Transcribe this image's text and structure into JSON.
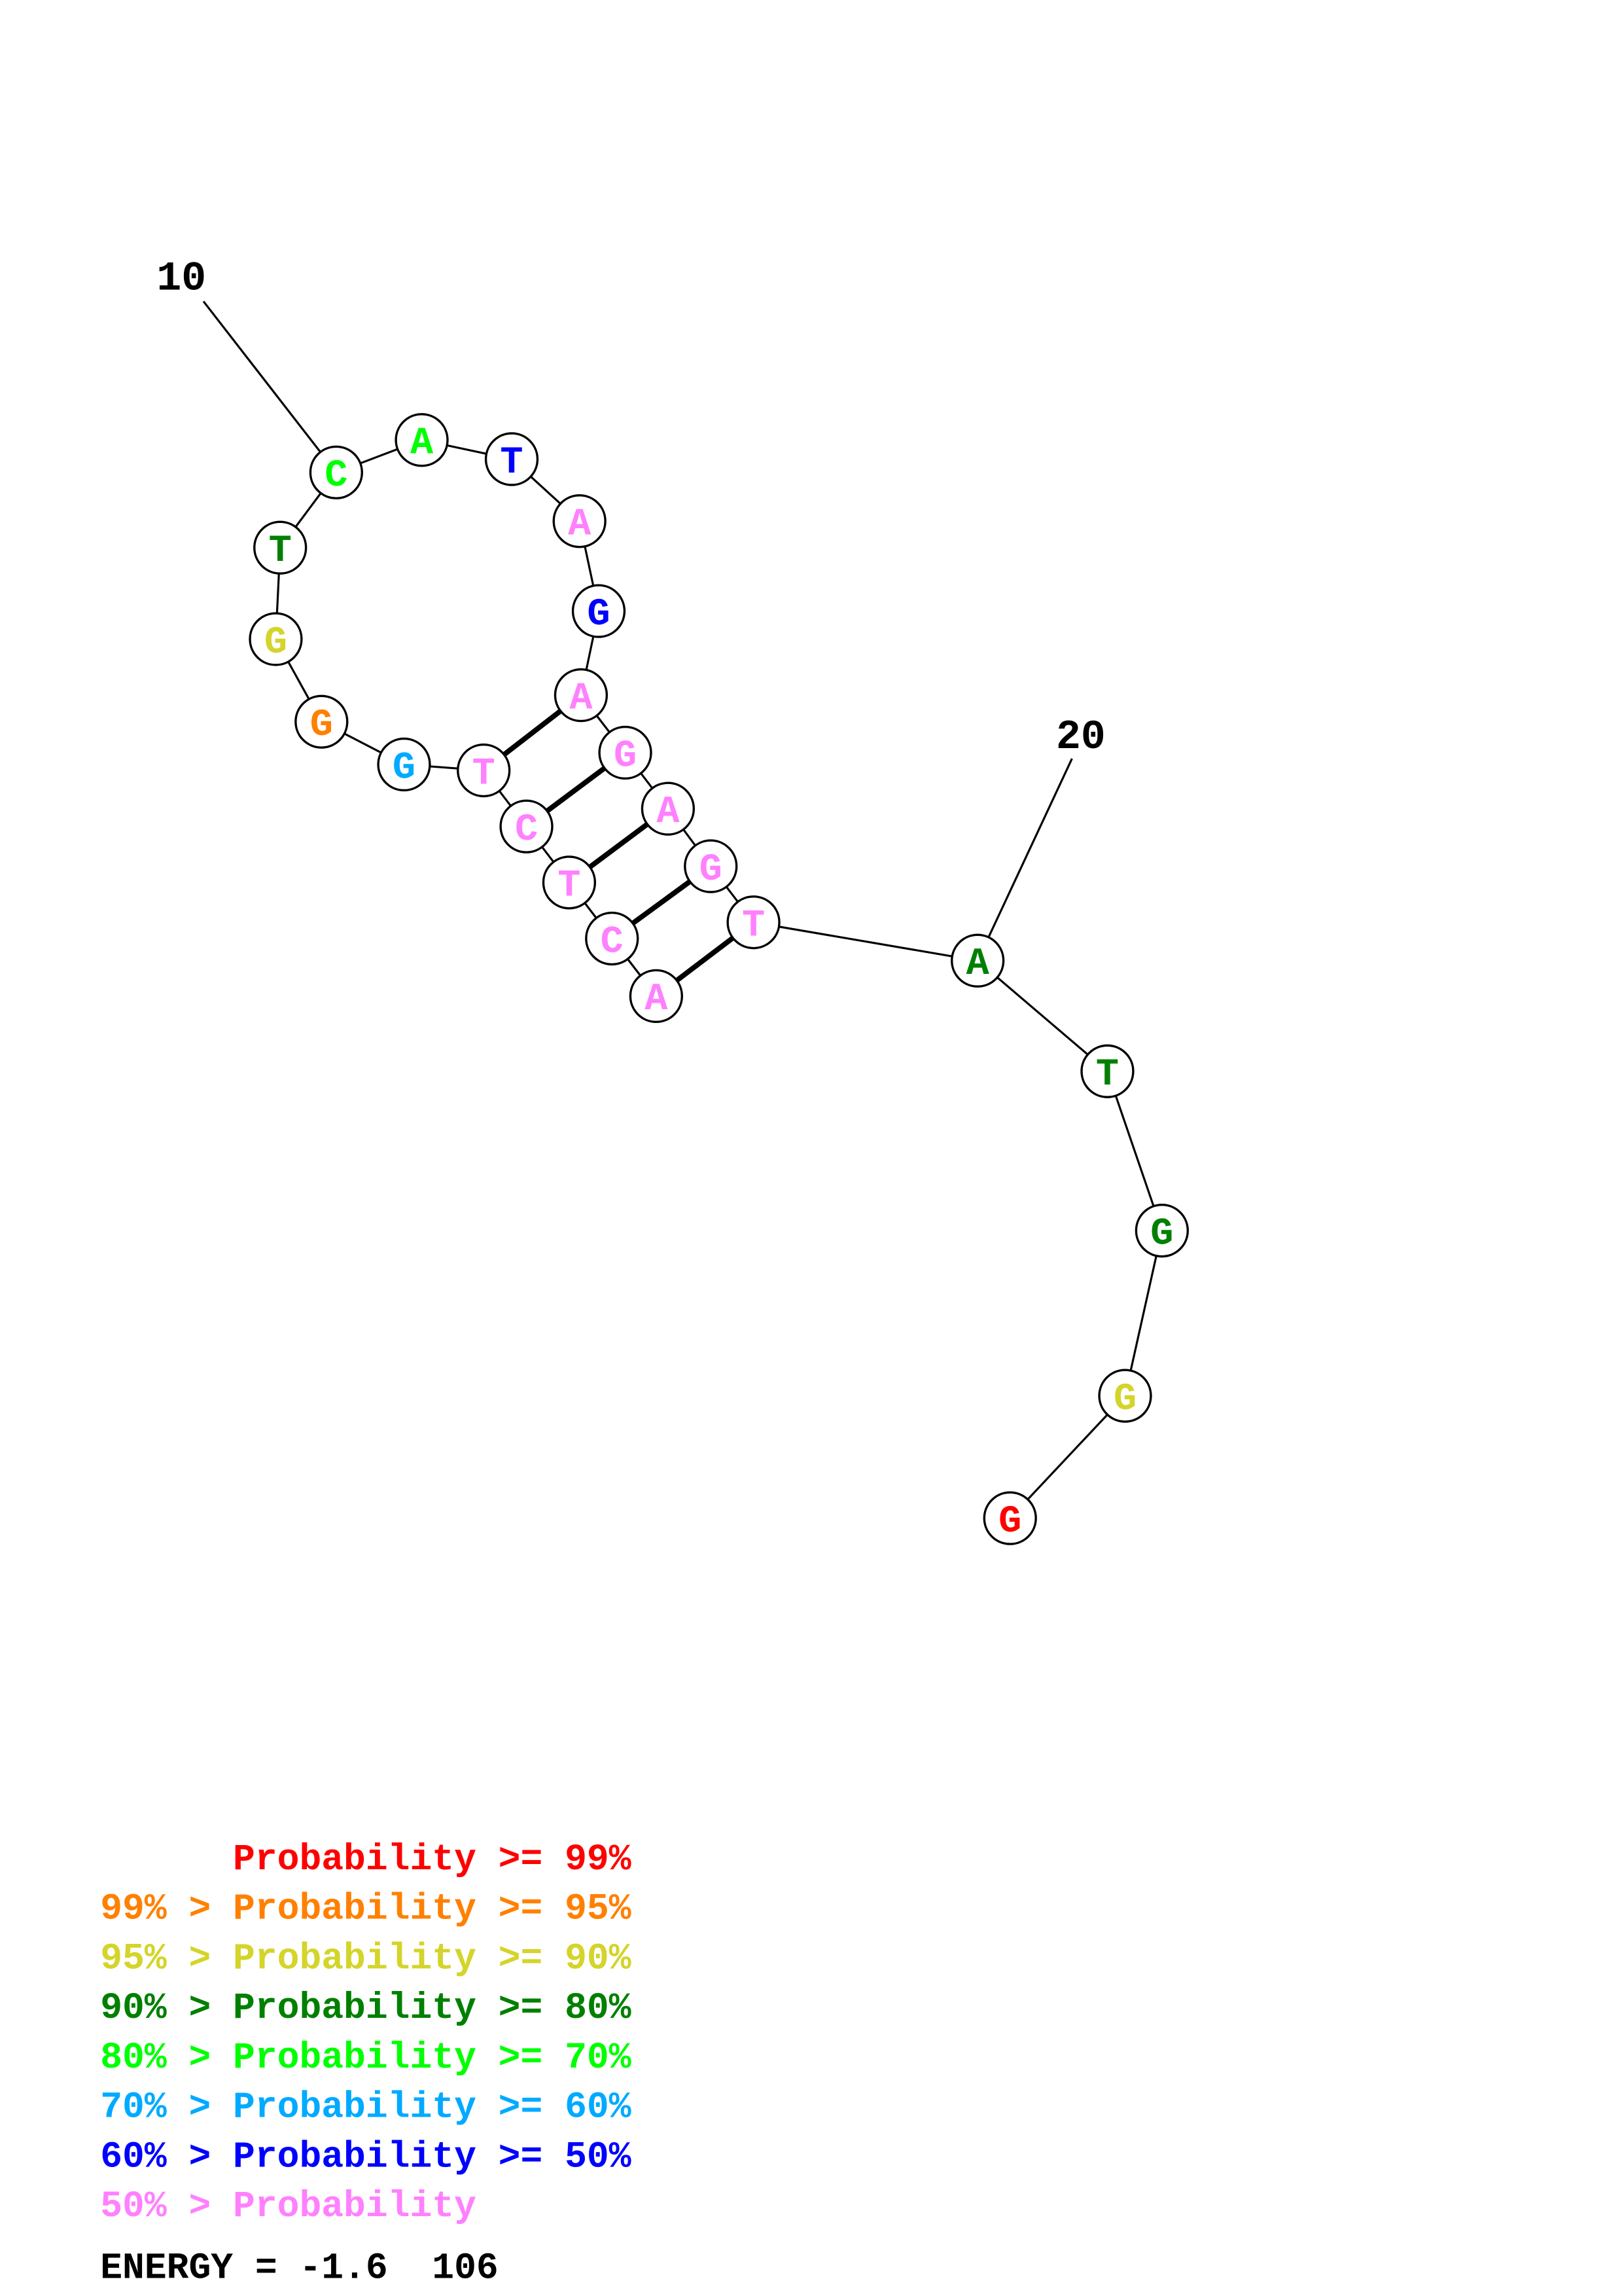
{
  "structure": {
    "sequence": [
      "A",
      "C",
      "T",
      "C",
      "T",
      "G",
      "G",
      "G",
      "T",
      "C",
      "A",
      "T",
      "A",
      "G",
      "A",
      "G",
      "A",
      "G",
      "T",
      "A",
      "T",
      "G",
      "G",
      "G"
    ],
    "probability_bins": [
      7,
      7,
      7,
      7,
      7,
      5,
      1,
      2,
      3,
      4,
      4,
      6,
      7,
      6,
      7,
      7,
      7,
      7,
      7,
      3,
      3,
      3,
      2,
      0
    ],
    "pairs": [
      [
        1,
        19
      ],
      [
        2,
        18
      ],
      [
        3,
        17
      ],
      [
        4,
        16
      ],
      [
        5,
        15
      ]
    ],
    "position_labels": [
      {
        "position": 10,
        "text": "10"
      },
      {
        "position": 20,
        "text": "20"
      }
    ]
  },
  "legend": {
    "colors": [
      "#ff0000",
      "#ff8000",
      "#d4d42a",
      "#008000",
      "#00ff00",
      "#00aaff",
      "#0000ff",
      "#ff80ff"
    ],
    "lines": [
      "      Probability >= 99%",
      "99% > Probability >= 95%",
      "95% > Probability >= 90%",
      "90% > Probability >= 80%",
      "80% > Probability >= 70%",
      "70% > Probability >= 60%",
      "60% > Probability >= 50%",
      "50% > Probability"
    ]
  },
  "energy": {
    "text": "ENERGY = -1.6  106",
    "value": -1.6
  }
}
